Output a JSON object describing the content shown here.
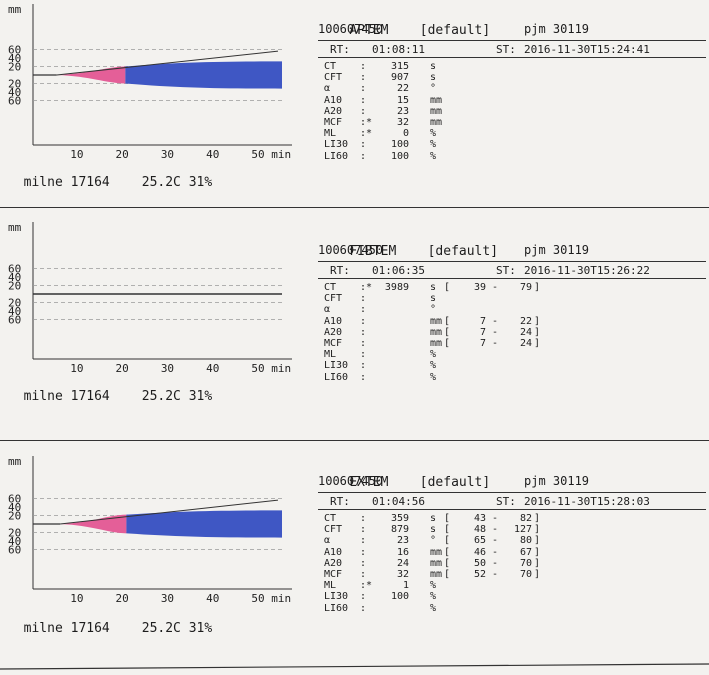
{
  "panels": [
    {
      "id": "aptem",
      "test_name": "APTEM",
      "mode": "[default]",
      "sample_id": "100607450",
      "operator": "pjm 30119",
      "rt_label": "RT:",
      "rt": "01:08:11",
      "st_label": "ST:",
      "st": "2016-11-30T15:24:41",
      "footer_name": "milne 17164",
      "footer_temp": "25.2C 31%",
      "params": [
        {
          "name": "CT",
          "flag": ":",
          "value": "315",
          "unit": "s",
          "lo": "",
          "hi": ""
        },
        {
          "name": "CFT",
          "flag": ":",
          "value": "907",
          "unit": "s",
          "lo": "",
          "hi": ""
        },
        {
          "name": "α",
          "flag": ":",
          "value": "22",
          "unit": "°",
          "lo": "",
          "hi": ""
        },
        {
          "name": "A10",
          "flag": ":",
          "value": "15",
          "unit": "mm",
          "lo": "",
          "hi": ""
        },
        {
          "name": "A20",
          "flag": ":",
          "value": "23",
          "unit": "mm",
          "lo": "",
          "hi": ""
        },
        {
          "name": "MCF",
          "flag": ":*",
          "value": "32",
          "unit": "mm",
          "lo": "",
          "hi": ""
        },
        {
          "name": "ML",
          "flag": ":*",
          "value": "0",
          "unit": "%",
          "lo": "",
          "hi": ""
        },
        {
          "name": "LI30",
          "flag": ":",
          "value": "100",
          "unit": "%",
          "lo": "",
          "hi": ""
        },
        {
          "name": "LI60",
          "flag": ":",
          "value": "100",
          "unit": "%",
          "lo": "",
          "hi": ""
        }
      ]
    },
    {
      "id": "fibtem",
      "test_name": "FIBTEM",
      "mode": "[default]",
      "sample_id": "100607450",
      "operator": "pjm 30119",
      "rt_label": "RT:",
      "rt": "01:06:35",
      "st_label": "ST:",
      "st": "2016-11-30T15:26:22",
      "footer_name": "milne 17164",
      "footer_temp": "25.2C 31%",
      "params": [
        {
          "name": "CT",
          "flag": ":*",
          "value": "3989",
          "unit": "s",
          "lo": "39",
          "hi": "79"
        },
        {
          "name": "CFT",
          "flag": ":",
          "value": "",
          "unit": "s",
          "lo": "",
          "hi": ""
        },
        {
          "name": "α",
          "flag": ":",
          "value": "",
          "unit": "°",
          "lo": "",
          "hi": ""
        },
        {
          "name": "A10",
          "flag": ":",
          "value": "",
          "unit": "mm",
          "lo": "7",
          "hi": "22"
        },
        {
          "name": "A20",
          "flag": ":",
          "value": "",
          "unit": "mm",
          "lo": "7",
          "hi": "24"
        },
        {
          "name": "MCF",
          "flag": ":",
          "value": "",
          "unit": "mm",
          "lo": "7",
          "hi": "24"
        },
        {
          "name": "ML",
          "flag": ":",
          "value": "",
          "unit": "%",
          "lo": "",
          "hi": ""
        },
        {
          "name": "LI30",
          "flag": ":",
          "value": "",
          "unit": "%",
          "lo": "",
          "hi": ""
        },
        {
          "name": "LI60",
          "flag": ":",
          "value": "",
          "unit": "%",
          "lo": "",
          "hi": ""
        }
      ]
    },
    {
      "id": "extem",
      "test_name": "EXTEM",
      "mode": "[default]",
      "sample_id": "100607450",
      "operator": "pjm 30119",
      "rt_label": "RT:",
      "rt": "01:04:56",
      "st_label": "ST:",
      "st": "2016-11-30T15:28:03",
      "footer_name": "milne 17164",
      "footer_temp": "25.2C 31%",
      "params": [
        {
          "name": "CT",
          "flag": ":",
          "value": "359",
          "unit": "s",
          "lo": "43",
          "hi": "82"
        },
        {
          "name": "CFT",
          "flag": ":",
          "value": "879",
          "unit": "s",
          "lo": "48",
          "hi": "127"
        },
        {
          "name": "α",
          "flag": ":",
          "value": "23",
          "unit": "°",
          "lo": "65",
          "hi": "80"
        },
        {
          "name": "A10",
          "flag": ":",
          "value": "16",
          "unit": "mm",
          "lo": "46",
          "hi": "67"
        },
        {
          "name": "A20",
          "flag": ":",
          "value": "24",
          "unit": "mm",
          "lo": "50",
          "hi": "70"
        },
        {
          "name": "MCF",
          "flag": ":",
          "value": "32",
          "unit": "mm",
          "lo": "52",
          "hi": "70"
        },
        {
          "name": "ML",
          "flag": ":*",
          "value": "1",
          "unit": "%",
          "lo": "",
          "hi": ""
        },
        {
          "name": "LI30",
          "flag": ":",
          "value": "100",
          "unit": "%",
          "lo": "",
          "hi": ""
        },
        {
          "name": "LI60",
          "flag": ":",
          "value": "",
          "unit": "%",
          "lo": "",
          "hi": ""
        }
      ]
    }
  ],
  "colors": {
    "ct_segment": "#e45f98",
    "cft_segment": "#3f57c4",
    "trace": "#333333",
    "grid": "#9a9a9a"
  },
  "chart_data": [
    {
      "type": "area",
      "x_unit": "min",
      "y_unit": "mm",
      "x_ticks": [
        10,
        20,
        30,
        40,
        50
      ],
      "x_tick_label_last": "50 min",
      "y_ticks": [
        60,
        40,
        20
      ],
      "xlim": [
        0,
        55
      ],
      "ylim": [
        -75,
        75
      ],
      "ct_end_min": 5.25,
      "cft_end_min": 20.4,
      "series": [
        {
          "values": [
            {
              "x": 5.25,
              "y": 0
            },
            {
              "x": 20.4,
              "y": 20
            },
            {
              "x": 55,
              "y": 32
            }
          ]
        }
      ],
      "reference_line_end_y": 75
    },
    {
      "type": "line",
      "x_unit": "min",
      "y_unit": "mm",
      "x_ticks": [
        10,
        20,
        30,
        40,
        50
      ],
      "x_tick_label_last": "50 min",
      "y_ticks": [
        60,
        40,
        20
      ],
      "xlim": [
        0,
        55
      ],
      "ylim": [
        -75,
        75
      ],
      "series": [
        {
          "values": [
            {
              "x": 0,
              "y": 0
            },
            {
              "x": 55,
              "y": 0
            }
          ]
        }
      ]
    },
    {
      "type": "area",
      "x_unit": "min",
      "y_unit": "mm",
      "x_ticks": [
        10,
        20,
        30,
        40,
        50
      ],
      "x_tick_label_last": "50 min",
      "y_ticks": [
        60,
        40,
        20
      ],
      "xlim": [
        0,
        55
      ],
      "ylim": [
        -75,
        75
      ],
      "ct_end_min": 5.98,
      "cft_end_min": 20.63,
      "series": [
        {
          "values": [
            {
              "x": 5.98,
              "y": 0
            },
            {
              "x": 20.63,
              "y": 22
            },
            {
              "x": 55,
              "y": 32
            }
          ]
        }
      ],
      "reference_line_end_y": 75
    }
  ]
}
